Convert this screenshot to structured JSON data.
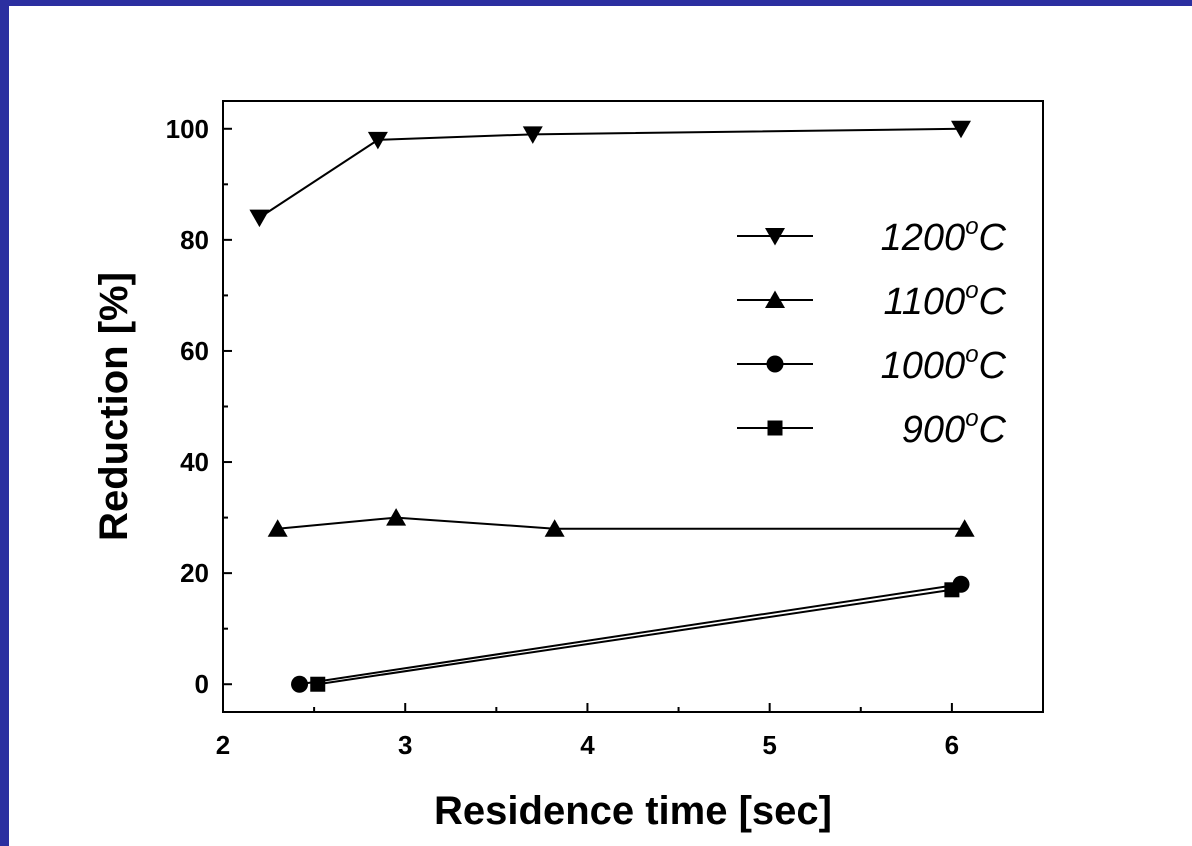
{
  "chart_data": {
    "type": "line",
    "xlabel": "Residence time [sec]",
    "ylabel": "Reduction [%]",
    "xlim": [
      2,
      6.5
    ],
    "ylim": [
      -5,
      105
    ],
    "x_ticks": [
      "2",
      "3",
      "4",
      "5",
      "6"
    ],
    "y_ticks": [
      "0",
      "20",
      "40",
      "60",
      "80",
      "100"
    ],
    "grid": false,
    "legend_position": "right",
    "series": [
      {
        "name": "1200°C",
        "legend_main": "1200",
        "legend_sup": "o",
        "legend_unit": "C",
        "marker": "triangle-down",
        "x": [
          2.2,
          2.85,
          3.7,
          6.05
        ],
        "y": [
          84,
          98,
          99,
          100
        ]
      },
      {
        "name": "1100°C",
        "legend_main": "1100",
        "legend_sup": "o",
        "legend_unit": "C",
        "marker": "triangle-up",
        "x": [
          2.3,
          2.95,
          3.82,
          6.07
        ],
        "y": [
          28,
          30,
          28,
          28
        ]
      },
      {
        "name": "1000°C",
        "legend_main": "1000",
        "legend_sup": "o",
        "legend_unit": "C",
        "marker": "circle",
        "x": [
          2.42,
          6.05
        ],
        "y": [
          0,
          18
        ]
      },
      {
        "name": "900°C",
        "legend_main": "900",
        "legend_sup": "o",
        "legend_unit": "C",
        "marker": "square",
        "x": [
          2.52,
          6.0
        ],
        "y": [
          0,
          17
        ]
      }
    ]
  }
}
